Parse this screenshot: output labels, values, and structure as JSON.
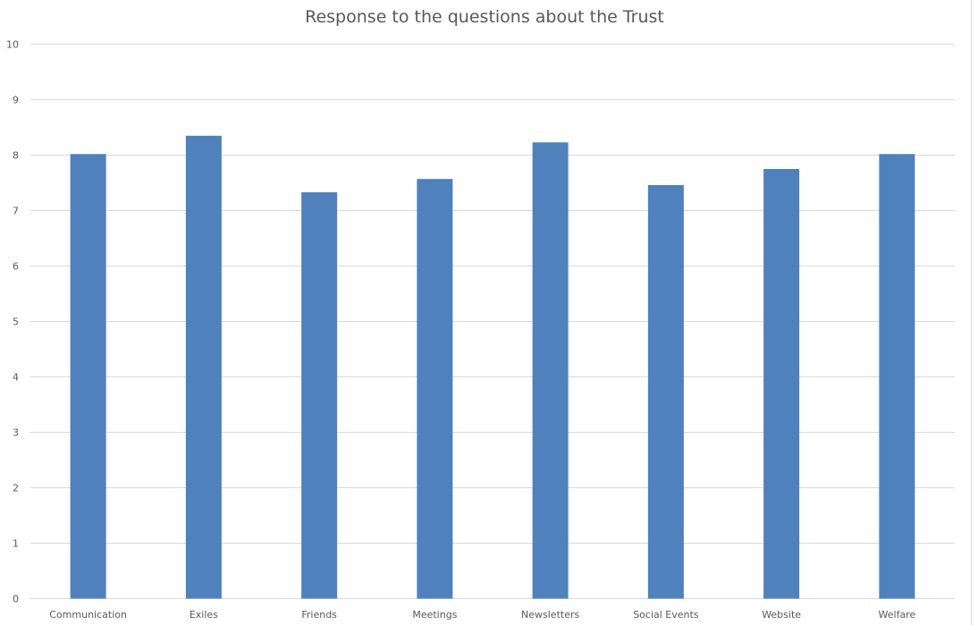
{
  "chart_data": {
    "type": "bar",
    "title": "Response to the questions about the Trust",
    "xlabel": "",
    "ylabel": "",
    "categories": [
      "Communication",
      "Exiles",
      "Friends",
      "Meetings",
      "Newsletters",
      "Social Events",
      "Website",
      "Welfare"
    ],
    "values": [
      8.02,
      8.35,
      7.33,
      7.57,
      8.23,
      7.46,
      7.75,
      8.02
    ],
    "ylim": [
      0,
      10
    ],
    "yticks": [
      0,
      1,
      2,
      3,
      4,
      5,
      6,
      7,
      8,
      9,
      10
    ],
    "grid": true,
    "legend": "none",
    "colors": {
      "bar": "#4f81bd",
      "grid": "#d9d9d9",
      "tick_text": "#595959",
      "title": "#595959"
    }
  }
}
